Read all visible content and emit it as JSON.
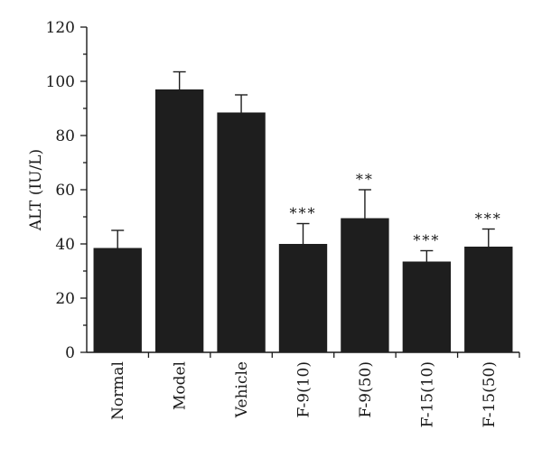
{
  "chart_data": {
    "type": "bar",
    "title": "",
    "xlabel": "",
    "ylabel": "ALT (IU/L)",
    "ylim": [
      0,
      120
    ],
    "yticks": [
      "0",
      "20",
      "40",
      "60",
      "80",
      "100",
      "120"
    ],
    "categories": [
      "Normal",
      "Model",
      "Vehicle",
      "F-9(10)",
      "F-9(50)",
      "F-15(10)",
      "F-15(50)"
    ],
    "values": [
      38.5,
      97,
      88.5,
      40,
      49.5,
      33.5,
      39
    ],
    "errors": [
      6.5,
      6.5,
      6.5,
      7.5,
      10.5,
      4,
      6.5
    ],
    "significance": [
      "",
      "",
      "",
      "***",
      "**",
      "***",
      "***"
    ],
    "grid": false,
    "bar_color": "#1e1e1e"
  }
}
